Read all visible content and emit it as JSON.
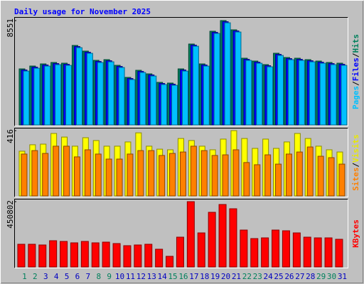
{
  "chart_data": [
    {
      "type": "bar",
      "title": "Daily usage for November 2025",
      "legend_separator": "/",
      "ylim": [
        0,
        8551
      ],
      "yticks": [
        8551
      ],
      "series": [
        {
          "name": "Pages",
          "color": "#00c0ff",
          "values": [
            4415,
            4648,
            4823,
            4939,
            4881,
            6335,
            5870,
            5114,
            5172,
            4706,
            3717,
            4299,
            4008,
            3310,
            3252,
            4415,
            6451,
            4823,
            7498,
            8371,
            7615,
            5288,
            5055,
            4765,
            5695,
            5346,
            5288,
            5172,
            5055,
            4939,
            4881
          ]
        },
        {
          "name": "Files",
          "color": "#0000ff",
          "values": [
            4505,
            4738,
            4913,
            5029,
            4971,
            6425,
            5960,
            5204,
            5262,
            4796,
            3807,
            4389,
            4098,
            3400,
            3342,
            4505,
            6541,
            4913,
            7588,
            8461,
            7705,
            5378,
            5145,
            4855,
            5785,
            5436,
            5378,
            5262,
            5145,
            5029,
            4971
          ]
        },
        {
          "name": "Hits",
          "color": "#00805c",
          "values": [
            4595,
            4828,
            5003,
            5119,
            5061,
            6515,
            6050,
            5294,
            5352,
            4886,
            3897,
            4479,
            4188,
            3490,
            3432,
            4595,
            6631,
            5003,
            7678,
            8551,
            7795,
            5468,
            5235,
            4945,
            5875,
            5526,
            5468,
            5352,
            5235,
            5119,
            5061
          ]
        }
      ]
    },
    {
      "type": "bar",
      "ylim": [
        0,
        416
      ],
      "yticks": [
        416
      ],
      "series": [
        {
          "name": "Sites",
          "color": "#ff8000",
          "values": [
            267,
            289,
            271,
            317,
            317,
            249,
            294,
            267,
            235,
            235,
            267,
            289,
            289,
            258,
            271,
            280,
            317,
            289,
            258,
            262,
            294,
            213,
            199,
            262,
            203,
            267,
            280,
            312,
            253,
            244,
            203
          ]
        },
        {
          "name": "Visits",
          "color": "#ffff00",
          "values": [
            285,
            326,
            330,
            398,
            375,
            317,
            371,
            353,
            317,
            317,
            344,
            402,
            317,
            298,
            294,
            366,
            353,
            317,
            294,
            362,
            416,
            366,
            303,
            362,
            303,
            344,
            398,
            366,
            317,
            294,
            280
          ]
        }
      ]
    },
    {
      "type": "bar",
      "ylim": [
        0,
        450802
      ],
      "yticks": [
        450802
      ],
      "categories": [
        "1",
        "2",
        "3",
        "4",
        "5",
        "6",
        "7",
        "8",
        "9",
        "10",
        "11",
        "12",
        "13",
        "14",
        "15",
        "16",
        "17",
        "18",
        "19",
        "20",
        "21",
        "22",
        "23",
        "24",
        "25",
        "26",
        "27",
        "28",
        "29",
        "30",
        "31"
      ],
      "category_colors": [
        "#00805c",
        "#00805c",
        "#0000c0",
        "#0000c0",
        "#0000c0",
        "#0000c0",
        "#0000c0",
        "#00805c",
        "#00805c",
        "#0000c0",
        "#0000c0",
        "#0000c0",
        "#0000c0",
        "#0000c0",
        "#00805c",
        "#00805c",
        "#0000c0",
        "#0000c0",
        "#0000c0",
        "#0000c0",
        "#0000c0",
        "#00805c",
        "#00805c",
        "#0000c0",
        "#0000c0",
        "#0000c0",
        "#0000c0",
        "#0000c0",
        "#00805c",
        "#00805c",
        "#0000c0"
      ],
      "series": [
        {
          "name": "KBytes",
          "color": "#ff0000",
          "values": [
            156800,
            156800,
            151900,
            181300,
            176400,
            166600,
            176400,
            166600,
            171500,
            161700,
            147000,
            151900,
            156800,
            122500,
            73500,
            205800,
            450802,
            235200,
            377300,
            431200,
            401800,
            254800,
            196000,
            200900,
            254800,
            249900,
            235200,
            205800,
            200900,
            200900,
            191100
          ]
        }
      ]
    }
  ]
}
